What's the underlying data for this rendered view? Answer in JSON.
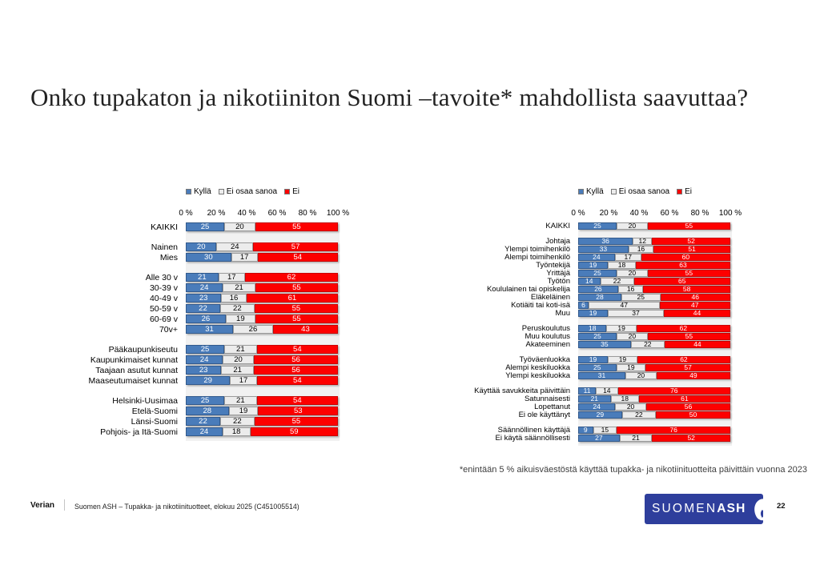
{
  "title": "Onko tupakaton ja nikotiiniton Suomi –tavoite* mahdollista saavuttaa?",
  "legend": {
    "items": [
      {
        "key": "kylla",
        "label": "Kyllä",
        "color": "#4a7cba"
      },
      {
        "key": "ei-osaa-sanoa",
        "label": "Ei osaa sanoa",
        "color": "#ececec"
      },
      {
        "key": "ei",
        "label": "Ei",
        "color": "#fd0000"
      }
    ]
  },
  "axis": {
    "ticks": [
      "0 %",
      "20 %",
      "40 %",
      "60 %",
      "80 %",
      "100 %"
    ],
    "range": [
      0,
      100
    ]
  },
  "chart_data": [
    {
      "type": "bar",
      "orientation": "horizontal",
      "stacked": true,
      "series_names": [
        "Kyllä",
        "Ei osaa sanoa",
        "Ei"
      ],
      "xlim": [
        0,
        100
      ],
      "xticks": [
        "0 %",
        "20 %",
        "40 %",
        "60 %",
        "80 %",
        "100 %"
      ],
      "legend_position": "top",
      "groups": [
        {
          "rows": [
            {
              "label": "KAIKKI",
              "values": [
                25,
                20,
                55
              ]
            }
          ]
        },
        {
          "rows": [
            {
              "label": "Nainen",
              "values": [
                20,
                24,
                57
              ]
            },
            {
              "label": "Mies",
              "values": [
                30,
                17,
                54
              ]
            }
          ]
        },
        {
          "rows": [
            {
              "label": "Alle 30 v",
              "values": [
                21,
                17,
                62
              ]
            },
            {
              "label": "30-39 v",
              "values": [
                24,
                21,
                55
              ]
            },
            {
              "label": "40-49 v",
              "values": [
                23,
                16,
                61
              ]
            },
            {
              "label": "50-59 v",
              "values": [
                22,
                22,
                55
              ]
            },
            {
              "label": "60-69 v",
              "values": [
                26,
                19,
                55
              ]
            },
            {
              "label": "70v+",
              "values": [
                31,
                26,
                43
              ]
            }
          ]
        },
        {
          "rows": [
            {
              "label": "Pääkaupunkiseutu",
              "values": [
                25,
                21,
                54
              ]
            },
            {
              "label": "Kaupunkimaiset kunnat",
              "values": [
                24,
                20,
                56
              ]
            },
            {
              "label": "Taajaan asutut kunnat",
              "values": [
                23,
                21,
                56
              ]
            },
            {
              "label": "Maaseutumaiset kunnat",
              "values": [
                29,
                17,
                54
              ]
            }
          ]
        },
        {
          "rows": [
            {
              "label": "Helsinki-Uusimaa",
              "values": [
                25,
                21,
                54
              ]
            },
            {
              "label": "Etelä-Suomi",
              "values": [
                28,
                19,
                53
              ]
            },
            {
              "label": "Länsi-Suomi",
              "values": [
                22,
                22,
                55
              ]
            },
            {
              "label": "Pohjois- ja Itä-Suomi",
              "values": [
                24,
                18,
                59
              ]
            }
          ]
        }
      ]
    },
    {
      "type": "bar",
      "orientation": "horizontal",
      "stacked": true,
      "series_names": [
        "Kyllä",
        "Ei osaa sanoa",
        "Ei"
      ],
      "xlim": [
        0,
        100
      ],
      "xticks": [
        "0 %",
        "20 %",
        "40 %",
        "60 %",
        "80 %",
        "100 %"
      ],
      "legend_position": "top",
      "groups": [
        {
          "rows": [
            {
              "label": "KAIKKI",
              "values": [
                25,
                20,
                55
              ]
            }
          ]
        },
        {
          "rows": [
            {
              "label": "Johtaja",
              "values": [
                36,
                12,
                52
              ]
            },
            {
              "label": "Ylempi toimihenkilö",
              "values": [
                33,
                16,
                51
              ]
            },
            {
              "label": "Alempi toimihenkilö",
              "values": [
                24,
                17,
                60
              ]
            },
            {
              "label": "Työntekijä",
              "values": [
                19,
                18,
                63
              ]
            },
            {
              "label": "Yrittäjä",
              "values": [
                25,
                20,
                55
              ]
            },
            {
              "label": "Työtön",
              "values": [
                14,
                22,
                65
              ]
            },
            {
              "label": "Koululainen tai opiskelija",
              "values": [
                26,
                16,
                58
              ]
            },
            {
              "label": "Eläkeläinen",
              "values": [
                28,
                25,
                46
              ]
            },
            {
              "label": "Kotiäiti tai koti-isä",
              "values": [
                6,
                47,
                47
              ]
            },
            {
              "label": "Muu",
              "values": [
                19,
                37,
                44
              ]
            }
          ]
        },
        {
          "rows": [
            {
              "label": "Peruskoulutus",
              "values": [
                18,
                19,
                62
              ]
            },
            {
              "label": "Muu koulutus",
              "values": [
                25,
                20,
                55
              ]
            },
            {
              "label": "Akateeminen",
              "values": [
                35,
                22,
                44
              ]
            }
          ]
        },
        {
          "rows": [
            {
              "label": "Työväenluokka",
              "values": [
                19,
                19,
                62
              ]
            },
            {
              "label": "Alempi keskiluokka",
              "values": [
                25,
                19,
                57
              ]
            },
            {
              "label": "Ylempi keskiluokka",
              "values": [
                31,
                20,
                49
              ]
            }
          ]
        },
        {
          "rows": [
            {
              "label": "Käyttää savukkeita päivittäin",
              "values": [
                11,
                14,
                76
              ]
            },
            {
              "label": "Satunnaisesti",
              "values": [
                21,
                18,
                61
              ]
            },
            {
              "label": "Lopettanut",
              "values": [
                24,
                20,
                56
              ]
            },
            {
              "label": "Ei ole käyttänyt",
              "values": [
                29,
                22,
                50
              ]
            }
          ]
        },
        {
          "rows": [
            {
              "label": "Säännöllinen käyttäjä",
              "values": [
                9,
                15,
                76
              ]
            },
            {
              "label": "Ei käytä säännöllisesti",
              "values": [
                27,
                21,
                52
              ]
            }
          ]
        }
      ]
    }
  ],
  "footnote": "*enintään 5 % aikuisväestöstä käyttää tupakka- ja nikotiinituotteita päivittäin vuonna 2023",
  "footer": {
    "brand": "Verian",
    "source": "Suomen ASH – Tupakka- ja nikotiinituotteet, elokuu 2025 (C451005514)",
    "page": "22",
    "logo": {
      "thin": "SUOMEN",
      "bold": "ASH",
      "color": "#2e3e9c"
    }
  }
}
